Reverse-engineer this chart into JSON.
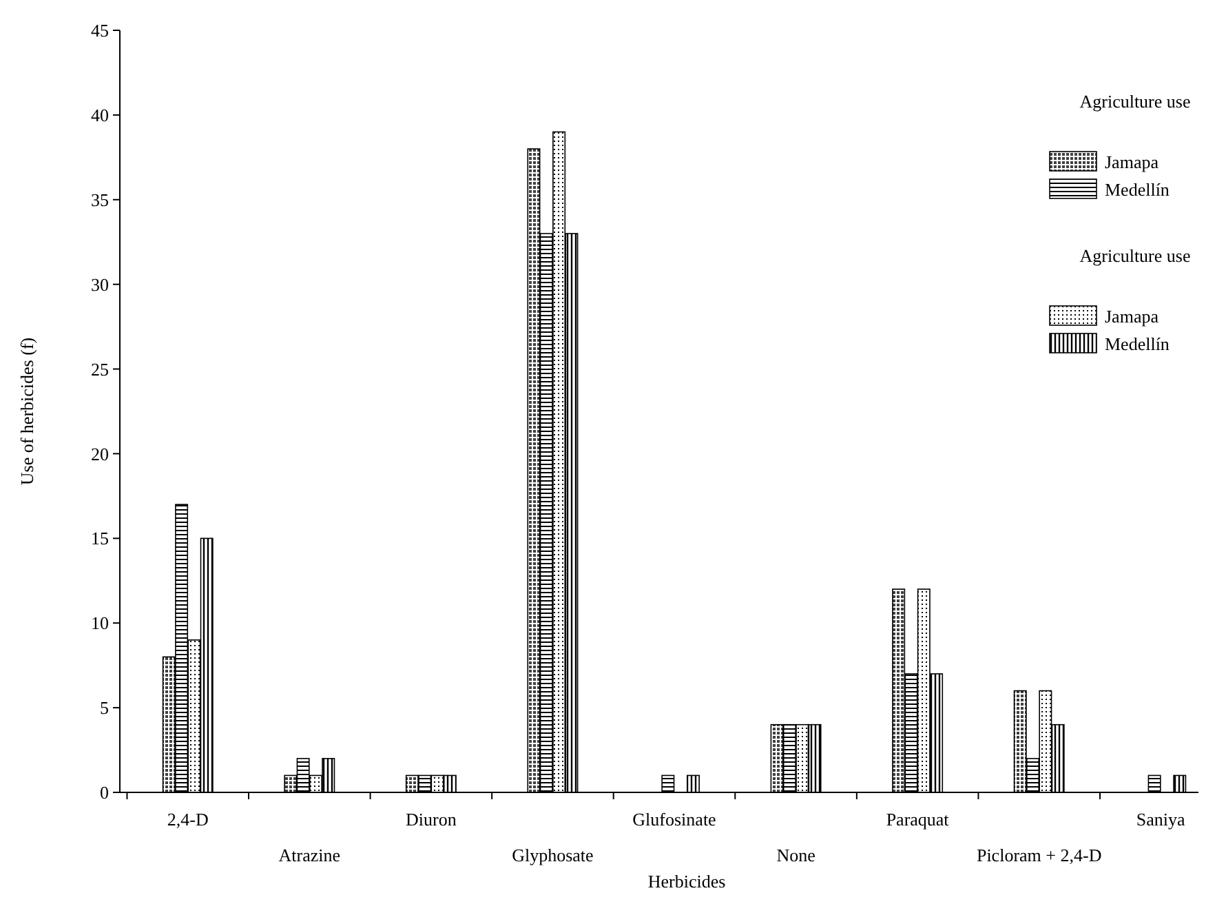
{
  "chart_data": {
    "type": "bar",
    "xlabel": "Herbicides",
    "ylabel": "Use of herbicides (f)",
    "legend_title": "Agriculture use",
    "categories": [
      "2,4-D",
      "Atrazine",
      "Diuron",
      "Glyphosate",
      "Glufosinate",
      "None",
      "Paraquat",
      "Picloram + 2,4-D",
      "Saniya"
    ],
    "series": [
      {
        "name": "Jamapa",
        "color": "#000000",
        "values": [
          8,
          1,
          1,
          38,
          0,
          4,
          12,
          6,
          0
        ]
      },
      {
        "name": "Medellín",
        "color": "#000000",
        "values": [
          17,
          2,
          1,
          33,
          1,
          4,
          7,
          2,
          1
        ]
      },
      {
        "name": "Jamapa",
        "color": "#000000",
        "values": [
          9,
          1,
          1,
          39,
          0,
          4,
          12,
          6,
          0
        ]
      },
      {
        "name": "Medellín",
        "color": "#000000",
        "values": [
          15,
          2,
          1,
          33,
          1,
          4,
          7,
          4,
          1
        ]
      }
    ],
    "ylim": [
      0,
      45
    ],
    "yticks": [
      0,
      5,
      10,
      15,
      20,
      25,
      30,
      35,
      40,
      45
    ],
    "grid": false,
    "legend": "top right"
  }
}
